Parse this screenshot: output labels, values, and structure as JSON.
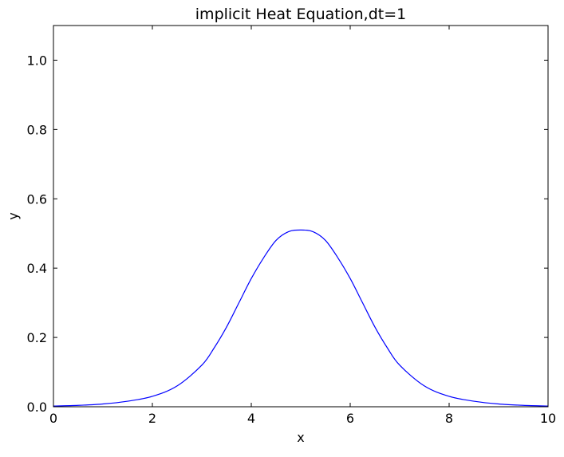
{
  "chart_data": {
    "type": "line",
    "title": "implicit Heat Equation,dt=1",
    "xlabel": "x",
    "ylabel": "y",
    "xlim": [
      0,
      10
    ],
    "ylim": [
      0,
      1.1
    ],
    "xticks": [
      0,
      2,
      4,
      6,
      8,
      10
    ],
    "xtick_labels": [
      "0",
      "2",
      "4",
      "6",
      "8",
      "10"
    ],
    "yticks": [
      0.0,
      0.2,
      0.4,
      0.6,
      0.8,
      1.0
    ],
    "ytick_labels": [
      "0.0",
      "0.2",
      "0.4",
      "0.6",
      "0.8",
      "1.0"
    ],
    "grid": false,
    "series": [
      {
        "color": "#0000ff",
        "x": [
          0,
          0.5,
          1,
          1.5,
          2,
          2.5,
          3,
          3.25,
          3.5,
          3.75,
          4,
          4.25,
          4.5,
          4.75,
          5,
          5.25,
          5.5,
          5.75,
          6,
          6.25,
          6.5,
          6.75,
          7,
          7.5,
          8,
          8.5,
          9,
          9.5,
          10
        ],
        "y": [
          0.002,
          0.004,
          0.008,
          0.016,
          0.03,
          0.06,
          0.12,
          0.17,
          0.23,
          0.3,
          0.37,
          0.43,
          0.48,
          0.505,
          0.51,
          0.505,
          0.48,
          0.43,
          0.37,
          0.3,
          0.23,
          0.17,
          0.12,
          0.06,
          0.03,
          0.016,
          0.008,
          0.004,
          0.002
        ]
      }
    ]
  }
}
